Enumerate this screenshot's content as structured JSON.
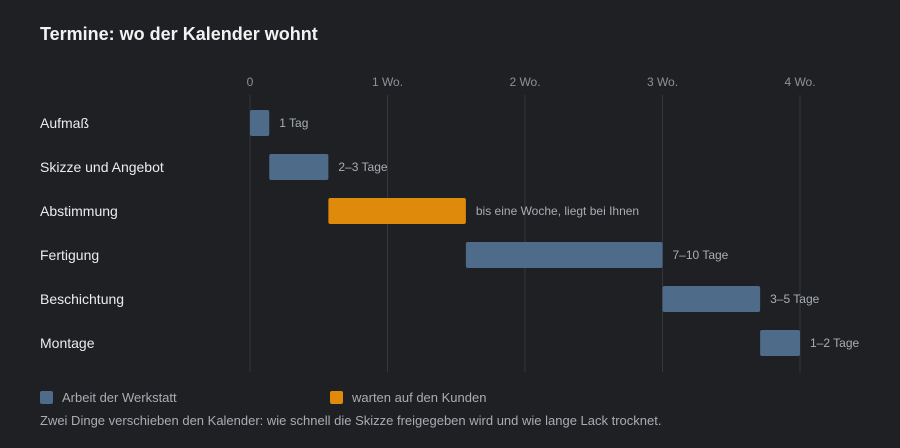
{
  "title": "Termine: wo der Kalender wohnt",
  "caption": "Zwei Dinge verschieben den Kalender: wie schnell die Skizze freigegeben wird und wie lange Lack trocknet.",
  "colors": {
    "background": "#1e2023",
    "workshop": "#4f6b8a",
    "customer": "#e08a0b",
    "grid": "#34373b",
    "axis_text": "#8e9297",
    "label_text": "#ececec",
    "bar_label": "#a9adb2"
  },
  "legend": [
    {
      "label": "Arbeit der Werkstatt",
      "color": "#4f6b8a"
    },
    {
      "label": "warten auf den Kunden",
      "color": "#e08a0b"
    }
  ],
  "chart_data": {
    "type": "gantt",
    "title": "Termine: wo der Kalender wohnt",
    "x_unit": "weeks",
    "xlim": [
      0,
      4
    ],
    "ticks": [
      {
        "value": 0,
        "label": "0"
      },
      {
        "value": 1,
        "label": "1 Wo."
      },
      {
        "value": 2,
        "label": "2 Wo."
      },
      {
        "value": 3,
        "label": "3 Wo."
      },
      {
        "value": 4,
        "label": "4 Wo."
      }
    ],
    "grid": true,
    "legend_position": "bottom-left",
    "tasks": [
      {
        "name": "Aufmaß",
        "start": 0.0,
        "end": 0.14,
        "label": "1 Tag",
        "group": "workshop"
      },
      {
        "name": "Skizze und Angebot",
        "start": 0.14,
        "end": 0.57,
        "label": "2–3 Tage",
        "group": "workshop"
      },
      {
        "name": "Abstimmung",
        "start": 0.57,
        "end": 1.57,
        "label": "bis eine Woche, liegt bei Ihnen",
        "group": "customer"
      },
      {
        "name": "Fertigung",
        "start": 1.57,
        "end": 3.0,
        "label": "7–10 Tage",
        "group": "workshop"
      },
      {
        "name": "Beschichtung",
        "start": 3.0,
        "end": 3.71,
        "label": "3–5 Tage",
        "group": "workshop"
      },
      {
        "name": "Montage",
        "start": 3.71,
        "end": 4.0,
        "label": "1–2 Tage",
        "group": "workshop"
      }
    ]
  }
}
